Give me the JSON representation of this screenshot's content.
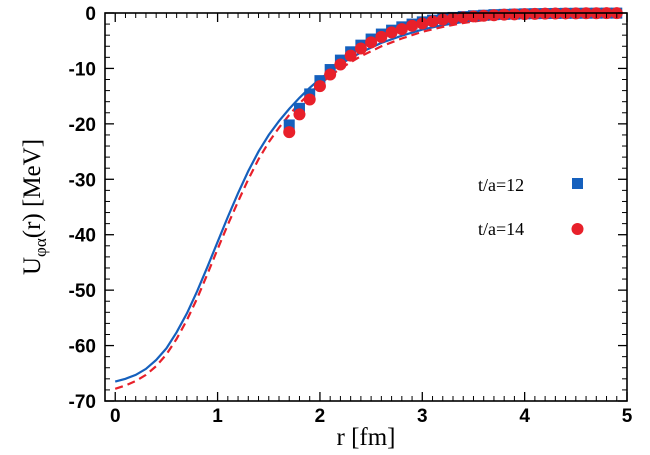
{
  "chart_data": {
    "type": "scatter",
    "title": "",
    "xlabel": "r [fm]",
    "ylabel": "U_φα(r) [MeV]",
    "ylabel_parts": {
      "main": "U",
      "sub": "φα",
      "rest": "(r) [MeV]"
    },
    "xlim": [
      -0.1,
      5.0
    ],
    "ylim": [
      -70,
      0
    ],
    "xticks": [
      0,
      1,
      2,
      3,
      4,
      5
    ],
    "yticks": [
      0,
      -10,
      -20,
      -30,
      -40,
      -50,
      -60,
      -70
    ],
    "grid": false,
    "legend_position": "right",
    "series": [
      {
        "name": "t/a=12",
        "kind": "points",
        "marker": "square",
        "color": "#1560bd",
        "x": [
          1.7,
          1.8,
          1.9,
          2.0,
          2.1,
          2.2,
          2.3,
          2.4,
          2.5,
          2.6,
          2.7,
          2.8,
          2.9,
          3.0,
          3.1,
          3.2,
          3.3,
          3.4,
          3.5,
          3.6,
          3.7,
          3.8,
          3.9,
          4.0,
          4.1,
          4.2,
          4.3,
          4.4,
          4.5,
          4.6,
          4.7,
          4.8,
          4.9
        ],
        "y": [
          -20.2,
          -17.2,
          -14.6,
          -12.2,
          -10.2,
          -8.5,
          -7.0,
          -5.8,
          -4.7,
          -3.8,
          -3.1,
          -2.5,
          -2.0,
          -1.6,
          -1.3,
          -1.0,
          -0.8,
          -0.65,
          -0.5,
          -0.4,
          -0.3,
          -0.25,
          -0.2,
          -0.15,
          -0.12,
          -0.1,
          -0.08,
          -0.06,
          -0.05,
          -0.04,
          -0.03,
          -0.02,
          -0.02
        ]
      },
      {
        "name": "t/a=14",
        "kind": "points",
        "marker": "circle",
        "color": "#e8202a",
        "x": [
          1.7,
          1.8,
          1.9,
          2.0,
          2.1,
          2.2,
          2.3,
          2.4,
          2.5,
          2.6,
          2.7,
          2.8,
          2.9,
          3.0,
          3.1,
          3.2,
          3.3,
          3.4,
          3.5,
          3.6,
          3.7,
          3.8,
          3.9,
          4.0,
          4.1,
          4.2,
          4.3,
          4.4,
          4.5,
          4.6,
          4.7,
          4.8,
          4.9
        ],
        "y": [
          -21.5,
          -18.3,
          -15.6,
          -13.2,
          -11.1,
          -9.3,
          -7.7,
          -6.4,
          -5.3,
          -4.3,
          -3.5,
          -2.9,
          -2.3,
          -1.9,
          -1.5,
          -1.2,
          -1.0,
          -0.8,
          -0.6,
          -0.5,
          -0.4,
          -0.3,
          -0.25,
          -0.2,
          -0.15,
          -0.12,
          -0.1,
          -0.08,
          -0.06,
          -0.05,
          -0.04,
          -0.03,
          -0.02
        ]
      },
      {
        "kind": "line",
        "style": "solid",
        "color": "#1560bd",
        "x": [
          0,
          0.1,
          0.2,
          0.3,
          0.4,
          0.5,
          0.6,
          0.7,
          0.8,
          0.9,
          1.0,
          1.1,
          1.2,
          1.3,
          1.4,
          1.5,
          1.6,
          1.7,
          1.8,
          1.9,
          2.0,
          2.2,
          2.4,
          2.6,
          2.8,
          3.0,
          3.2,
          3.4,
          3.6,
          3.8,
          4.0,
          4.2,
          4.4,
          4.6,
          4.8,
          4.95
        ],
        "y": [
          -66.5,
          -66.0,
          -65.3,
          -64.2,
          -62.6,
          -60.5,
          -57.6,
          -54.2,
          -50.2,
          -45.8,
          -41.3,
          -36.8,
          -32.5,
          -28.5,
          -25.0,
          -22.0,
          -19.5,
          -17.3,
          -15.3,
          -13.5,
          -11.9,
          -9.2,
          -7.1,
          -5.4,
          -4.1,
          -3.0,
          -2.2,
          -1.6,
          -1.1,
          -0.8,
          -0.55,
          -0.38,
          -0.26,
          -0.18,
          -0.12,
          -0.09
        ]
      },
      {
        "kind": "line",
        "style": "dashed",
        "color": "#e8202a",
        "x": [
          0,
          0.1,
          0.2,
          0.3,
          0.4,
          0.5,
          0.6,
          0.7,
          0.8,
          0.9,
          1.0,
          1.1,
          1.2,
          1.3,
          1.4,
          1.5,
          1.6,
          1.7,
          1.8,
          1.9,
          2.0,
          2.2,
          2.4,
          2.6,
          2.8,
          3.0,
          3.2,
          3.4,
          3.6,
          3.8,
          4.0,
          4.2,
          4.4,
          4.6,
          4.8,
          4.95
        ],
        "y": [
          -67.8,
          -67.2,
          -66.4,
          -65.3,
          -63.7,
          -61.6,
          -58.8,
          -55.4,
          -51.5,
          -47.1,
          -42.6,
          -38.2,
          -34.0,
          -30.0,
          -26.4,
          -23.3,
          -20.7,
          -18.4,
          -16.3,
          -14.5,
          -12.8,
          -10.0,
          -7.8,
          -6.0,
          -4.6,
          -3.4,
          -2.5,
          -1.8,
          -1.3,
          -0.9,
          -0.65,
          -0.45,
          -0.31,
          -0.21,
          -0.14,
          -0.1
        ]
      }
    ]
  }
}
